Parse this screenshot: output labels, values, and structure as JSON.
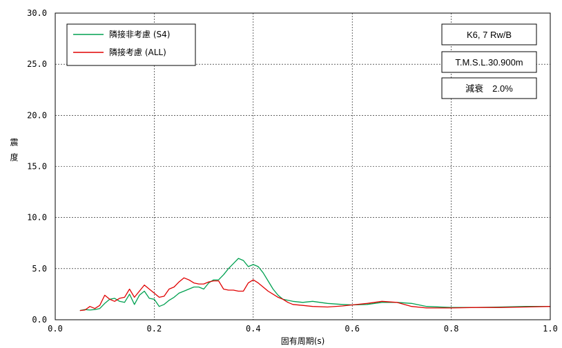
{
  "chart_data": {
    "type": "line",
    "xlabel": "固有周期(s)",
    "ylabel": "震度",
    "xlim": [
      0.0,
      1.0
    ],
    "ylim": [
      0.0,
      30.0
    ],
    "x_ticks": [
      0.0,
      0.2,
      0.4,
      0.6,
      0.8,
      1.0
    ],
    "x_tick_labels": [
      "0.0",
      "0.2",
      "0.4",
      "0.6",
      "0.8",
      "1.0"
    ],
    "y_ticks": [
      0.0,
      5.0,
      10.0,
      15.0,
      20.0,
      25.0,
      30.0
    ],
    "y_tick_labels": [
      "0.0",
      "5.0",
      "10.0",
      "15.0",
      "20.0",
      "25.0",
      "30.0"
    ],
    "grid": true,
    "legend_position": "top-left",
    "series": [
      {
        "name": "隣接非考慮 (S4)",
        "color": "#00a050",
        "x": [
          0.05,
          0.06,
          0.07,
          0.08,
          0.09,
          0.1,
          0.11,
          0.12,
          0.13,
          0.14,
          0.15,
          0.16,
          0.17,
          0.18,
          0.19,
          0.2,
          0.21,
          0.22,
          0.23,
          0.24,
          0.25,
          0.26,
          0.27,
          0.28,
          0.29,
          0.3,
          0.31,
          0.32,
          0.33,
          0.34,
          0.35,
          0.36,
          0.37,
          0.38,
          0.39,
          0.4,
          0.41,
          0.42,
          0.43,
          0.44,
          0.45,
          0.46,
          0.47,
          0.48,
          0.5,
          0.52,
          0.55,
          0.58,
          0.6,
          0.63,
          0.66,
          0.69,
          0.72,
          0.75,
          0.8,
          0.85,
          0.9,
          0.95,
          1.0
        ],
        "values": [
          0.9,
          1.0,
          0.95,
          1.0,
          1.1,
          1.6,
          2.0,
          2.1,
          1.8,
          1.7,
          2.5,
          1.5,
          2.4,
          2.8,
          2.1,
          2.0,
          1.3,
          1.5,
          1.9,
          2.2,
          2.6,
          2.8,
          3.0,
          3.2,
          3.2,
          3.0,
          3.6,
          3.9,
          3.9,
          4.4,
          5.0,
          5.5,
          6.0,
          5.8,
          5.2,
          5.4,
          5.2,
          4.6,
          3.8,
          3.0,
          2.4,
          2.0,
          1.9,
          1.8,
          1.7,
          1.8,
          1.6,
          1.5,
          1.45,
          1.5,
          1.7,
          1.7,
          1.6,
          1.3,
          1.2,
          1.2,
          1.25,
          1.3,
          1.3
        ]
      },
      {
        "name": "隣接考慮 (ALL)",
        "color": "#e00000",
        "x": [
          0.05,
          0.06,
          0.07,
          0.08,
          0.09,
          0.1,
          0.11,
          0.12,
          0.13,
          0.14,
          0.15,
          0.16,
          0.17,
          0.18,
          0.19,
          0.2,
          0.21,
          0.22,
          0.23,
          0.24,
          0.25,
          0.26,
          0.27,
          0.28,
          0.29,
          0.3,
          0.31,
          0.32,
          0.33,
          0.34,
          0.35,
          0.36,
          0.37,
          0.38,
          0.39,
          0.4,
          0.41,
          0.42,
          0.43,
          0.44,
          0.45,
          0.46,
          0.47,
          0.48,
          0.5,
          0.52,
          0.55,
          0.58,
          0.6,
          0.63,
          0.66,
          0.69,
          0.72,
          0.75,
          0.8,
          0.85,
          0.9,
          0.95,
          1.0
        ],
        "values": [
          0.9,
          0.95,
          1.3,
          1.1,
          1.4,
          2.4,
          2.0,
          1.8,
          2.1,
          2.2,
          3.0,
          2.2,
          2.8,
          3.4,
          3.0,
          2.6,
          2.2,
          2.3,
          3.0,
          3.2,
          3.7,
          4.1,
          3.9,
          3.6,
          3.5,
          3.5,
          3.7,
          3.8,
          3.8,
          3.0,
          2.9,
          2.9,
          2.8,
          2.8,
          3.6,
          3.9,
          3.6,
          3.2,
          2.8,
          2.5,
          2.2,
          2.0,
          1.7,
          1.5,
          1.4,
          1.3,
          1.25,
          1.35,
          1.45,
          1.6,
          1.8,
          1.7,
          1.3,
          1.15,
          1.15,
          1.2,
          1.2,
          1.25,
          1.3
        ]
      }
    ],
    "info_boxes": [
      "K6, 7 Rw/B",
      "T.M.S.L.30.900m",
      "減衰　2.0%"
    ]
  }
}
